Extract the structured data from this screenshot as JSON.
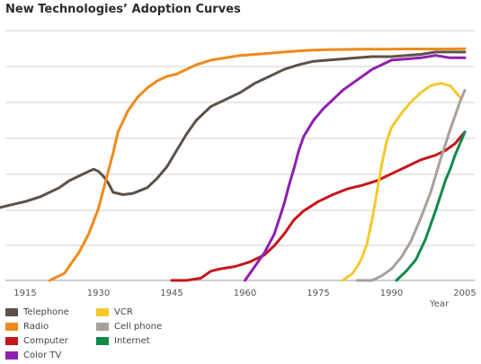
{
  "chart_data": {
    "type": "line",
    "title": "New Technologies’ Adoption Curves",
    "xlabel": "Year",
    "ylabel": "",
    "xlim": [
      1900,
      2006
    ],
    "ylim": [
      0,
      100
    ],
    "xticks": [
      1915,
      1930,
      1945,
      1960,
      1975,
      1990,
      2005
    ],
    "grid": true,
    "legend_position": "bottom",
    "series": [
      {
        "name": "Telephone",
        "color": "#5b524a",
        "x": [
          1900,
          1903,
          1906,
          1909,
          1912,
          1915,
          1918,
          1920,
          1922,
          1924,
          1926,
          1928,
          1929,
          1930,
          1931,
          1932,
          1933,
          1935,
          1937,
          1940,
          1942,
          1944,
          1946,
          1948,
          1950,
          1953,
          1956,
          1959,
          1962,
          1965,
          1968,
          1971,
          1974,
          1977,
          1980,
          1983,
          1986,
          1990,
          1993,
          1996,
          1999,
          2002,
          2005
        ],
        "y": [
          24,
          27,
          29,
          31,
          32.5,
          34,
          36,
          38,
          40,
          43,
          45,
          47,
          48,
          47,
          45,
          42,
          38,
          37,
          37.5,
          40,
          44,
          49,
          56,
          63,
          69,
          75,
          78,
          81,
          85,
          88,
          91,
          93,
          94.5,
          95,
          95.5,
          96,
          96.5,
          96.5,
          97,
          97.5,
          98.5,
          98.5,
          98.5
        ]
      },
      {
        "name": "Radio",
        "color": "#ee8a1b",
        "x": [
          1920,
          1922,
          1923,
          1924,
          1926,
          1928,
          1930,
          1931,
          1932,
          1933,
          1934,
          1936,
          1938,
          1940,
          1942,
          1944,
          1946,
          1948,
          1950,
          1953,
          1956,
          1959,
          1962,
          1965,
          1968,
          1971,
          1974,
          1977,
          1980,
          1984,
          1988,
          1992,
          1996,
          2000,
          2005
        ],
        "y": [
          0,
          2,
          3,
          6,
          12,
          20,
          31,
          39,
          47,
          55,
          64,
          73,
          79,
          83,
          86,
          88,
          89,
          91,
          93,
          95,
          96,
          97,
          97.5,
          98,
          98.5,
          99,
          99.3,
          99.5,
          99.6,
          99.7,
          99.7,
          99.8,
          99.8,
          99.8,
          99.9
        ]
      },
      {
        "name": "Computer",
        "color": "#c6161b",
        "x": [
          1945,
          1948,
          1951,
          1953,
          1955,
          1958,
          1961,
          1964,
          1966,
          1968,
          1970,
          1972,
          1975,
          1978,
          1981,
          1984,
          1987,
          1990,
          1993,
          1996,
          1999,
          2001,
          2003,
          2005
        ],
        "y": [
          0,
          0,
          1,
          4,
          5,
          6,
          8,
          11,
          15,
          20,
          26,
          30,
          34,
          37,
          39.5,
          41,
          43,
          46,
          49,
          52,
          54,
          56,
          59,
          64
        ]
      },
      {
        "name": "Color TV",
        "color": "#8f1fb0",
        "x": [
          1960,
          1962,
          1964,
          1966,
          1968,
          1969,
          1970,
          1971,
          1972,
          1974,
          1976,
          1978,
          1980,
          1982,
          1984,
          1986,
          1988,
          1990,
          1993,
          1996,
          1999,
          2002,
          2005
        ],
        "y": [
          0,
          6,
          12,
          20,
          33,
          41,
          48,
          56,
          62,
          69,
          74,
          78,
          82,
          85,
          88,
          91,
          93,
          95,
          95.5,
          96,
          97,
          96,
          96
        ]
      },
      {
        "name": "VCR",
        "color": "#f5c92c",
        "x": [
          1980,
          1982,
          1983,
          1984,
          1985,
          1986,
          1987,
          1988,
          1989,
          1990,
          1992,
          1994,
          1996,
          1998,
          2000,
          2002,
          2004
        ],
        "y": [
          0,
          3,
          6,
          10,
          16,
          26,
          38,
          50,
          60,
          66,
          72,
          77,
          81,
          84,
          85,
          84,
          79
        ]
      },
      {
        "name": "Cell phone",
        "color": "#a8a09a",
        "x": [
          1983,
          1986,
          1988,
          1990,
          1992,
          1994,
          1996,
          1998,
          2000,
          2002,
          2004,
          2005
        ],
        "y": [
          0,
          0,
          2,
          5,
          10,
          17,
          27,
          38,
          52,
          65,
          77,
          82
        ]
      },
      {
        "name": "Internet",
        "color": "#0f8a49",
        "x": [
          1991,
          1993,
          1995,
          1997,
          1999,
          2001,
          2002,
          2003,
          2004,
          2005
        ],
        "y": [
          0,
          4,
          9,
          18,
          30,
          43,
          48,
          54,
          59,
          64
        ]
      }
    ]
  }
}
